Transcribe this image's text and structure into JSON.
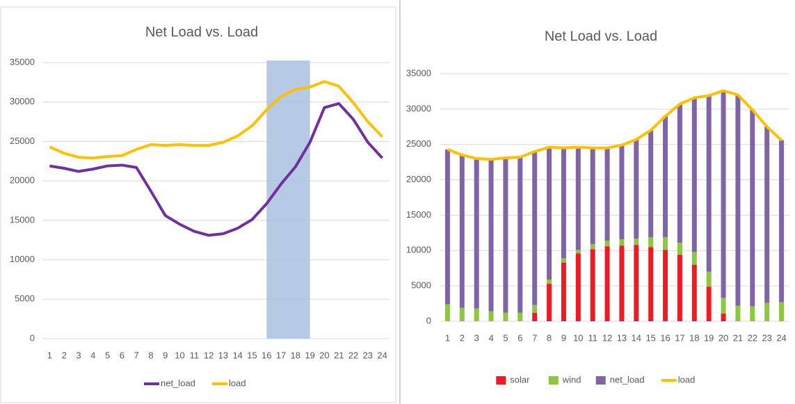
{
  "chart_data": [
    {
      "type": "line",
      "title": "Net Load vs. Load",
      "categories": [
        "1",
        "2",
        "3",
        "4",
        "5",
        "6",
        "7",
        "8",
        "9",
        "10",
        "11",
        "12",
        "13",
        "14",
        "15",
        "16",
        "17",
        "18",
        "19",
        "20",
        "21",
        "22",
        "23",
        "24"
      ],
      "series": [
        {
          "name": "net_load",
          "color": "#7030a0",
          "values": [
            21900,
            21600,
            21200,
            21500,
            21900,
            22000,
            21700,
            18700,
            15600,
            14500,
            13600,
            13100,
            13300,
            14000,
            15100,
            17100,
            19600,
            21800,
            24900,
            29300,
            29800,
            27800,
            24900,
            22900
          ]
        },
        {
          "name": "load",
          "color": "#ffc000",
          "values": [
            24300,
            23500,
            23000,
            22900,
            23100,
            23200,
            24000,
            24600,
            24500,
            24600,
            24500,
            24500,
            24900,
            25700,
            27000,
            29000,
            30700,
            31600,
            31900,
            32600,
            32000,
            29900,
            27500,
            25600
          ]
        }
      ],
      "highlight": {
        "from": "16",
        "to": "19",
        "color": "#a9c1e0"
      },
      "ylim": [
        0,
        35000
      ],
      "yticks": [
        0,
        5000,
        10000,
        15000,
        20000,
        25000,
        30000,
        35000
      ],
      "grid": true,
      "legend": "bottom"
    },
    {
      "type": "bar",
      "stacked": true,
      "title": "Net Load vs. Load",
      "categories": [
        "1",
        "2",
        "3",
        "4",
        "5",
        "6",
        "7",
        "8",
        "9",
        "10",
        "11",
        "12",
        "13",
        "14",
        "15",
        "16",
        "17",
        "18",
        "19",
        "20",
        "21",
        "22",
        "23",
        "24"
      ],
      "series": [
        {
          "name": "solar",
          "color": "#ed1c24",
          "values": [
            0,
            0,
            0,
            0,
            0,
            0,
            1200,
            5300,
            8300,
            9600,
            10200,
            10600,
            10700,
            10800,
            10500,
            10100,
            9400,
            8000,
            4900,
            1100,
            0,
            0,
            0,
            0
          ]
        },
        {
          "name": "wind",
          "color": "#8dc63f",
          "values": [
            2400,
            1900,
            1800,
            1400,
            1200,
            1200,
            1100,
            600,
            600,
            500,
            700,
            800,
            900,
            900,
            1400,
            1800,
            1700,
            1800,
            2100,
            2200,
            2200,
            2100,
            2600,
            2700
          ]
        },
        {
          "name": "net_load",
          "color": "#8064a8",
          "values": [
            21900,
            21600,
            21200,
            21500,
            21900,
            22000,
            21700,
            18700,
            15600,
            14500,
            13600,
            13100,
            13300,
            14000,
            15100,
            17100,
            19600,
            21800,
            24900,
            29300,
            29800,
            27800,
            24900,
            22900
          ]
        },
        {
          "name": "load",
          "type": "line",
          "color": "#ffc000",
          "values": [
            24300,
            23500,
            23000,
            22900,
            23100,
            23200,
            24000,
            24600,
            24500,
            24600,
            24500,
            24500,
            24900,
            25700,
            27000,
            29000,
            30700,
            31600,
            31900,
            32600,
            32000,
            29900,
            27500,
            25600
          ]
        }
      ],
      "ylim": [
        0,
        35000
      ],
      "yticks": [
        0,
        5000,
        10000,
        15000,
        20000,
        25000,
        30000,
        35000
      ],
      "grid": true,
      "legend": "bottom"
    }
  ]
}
